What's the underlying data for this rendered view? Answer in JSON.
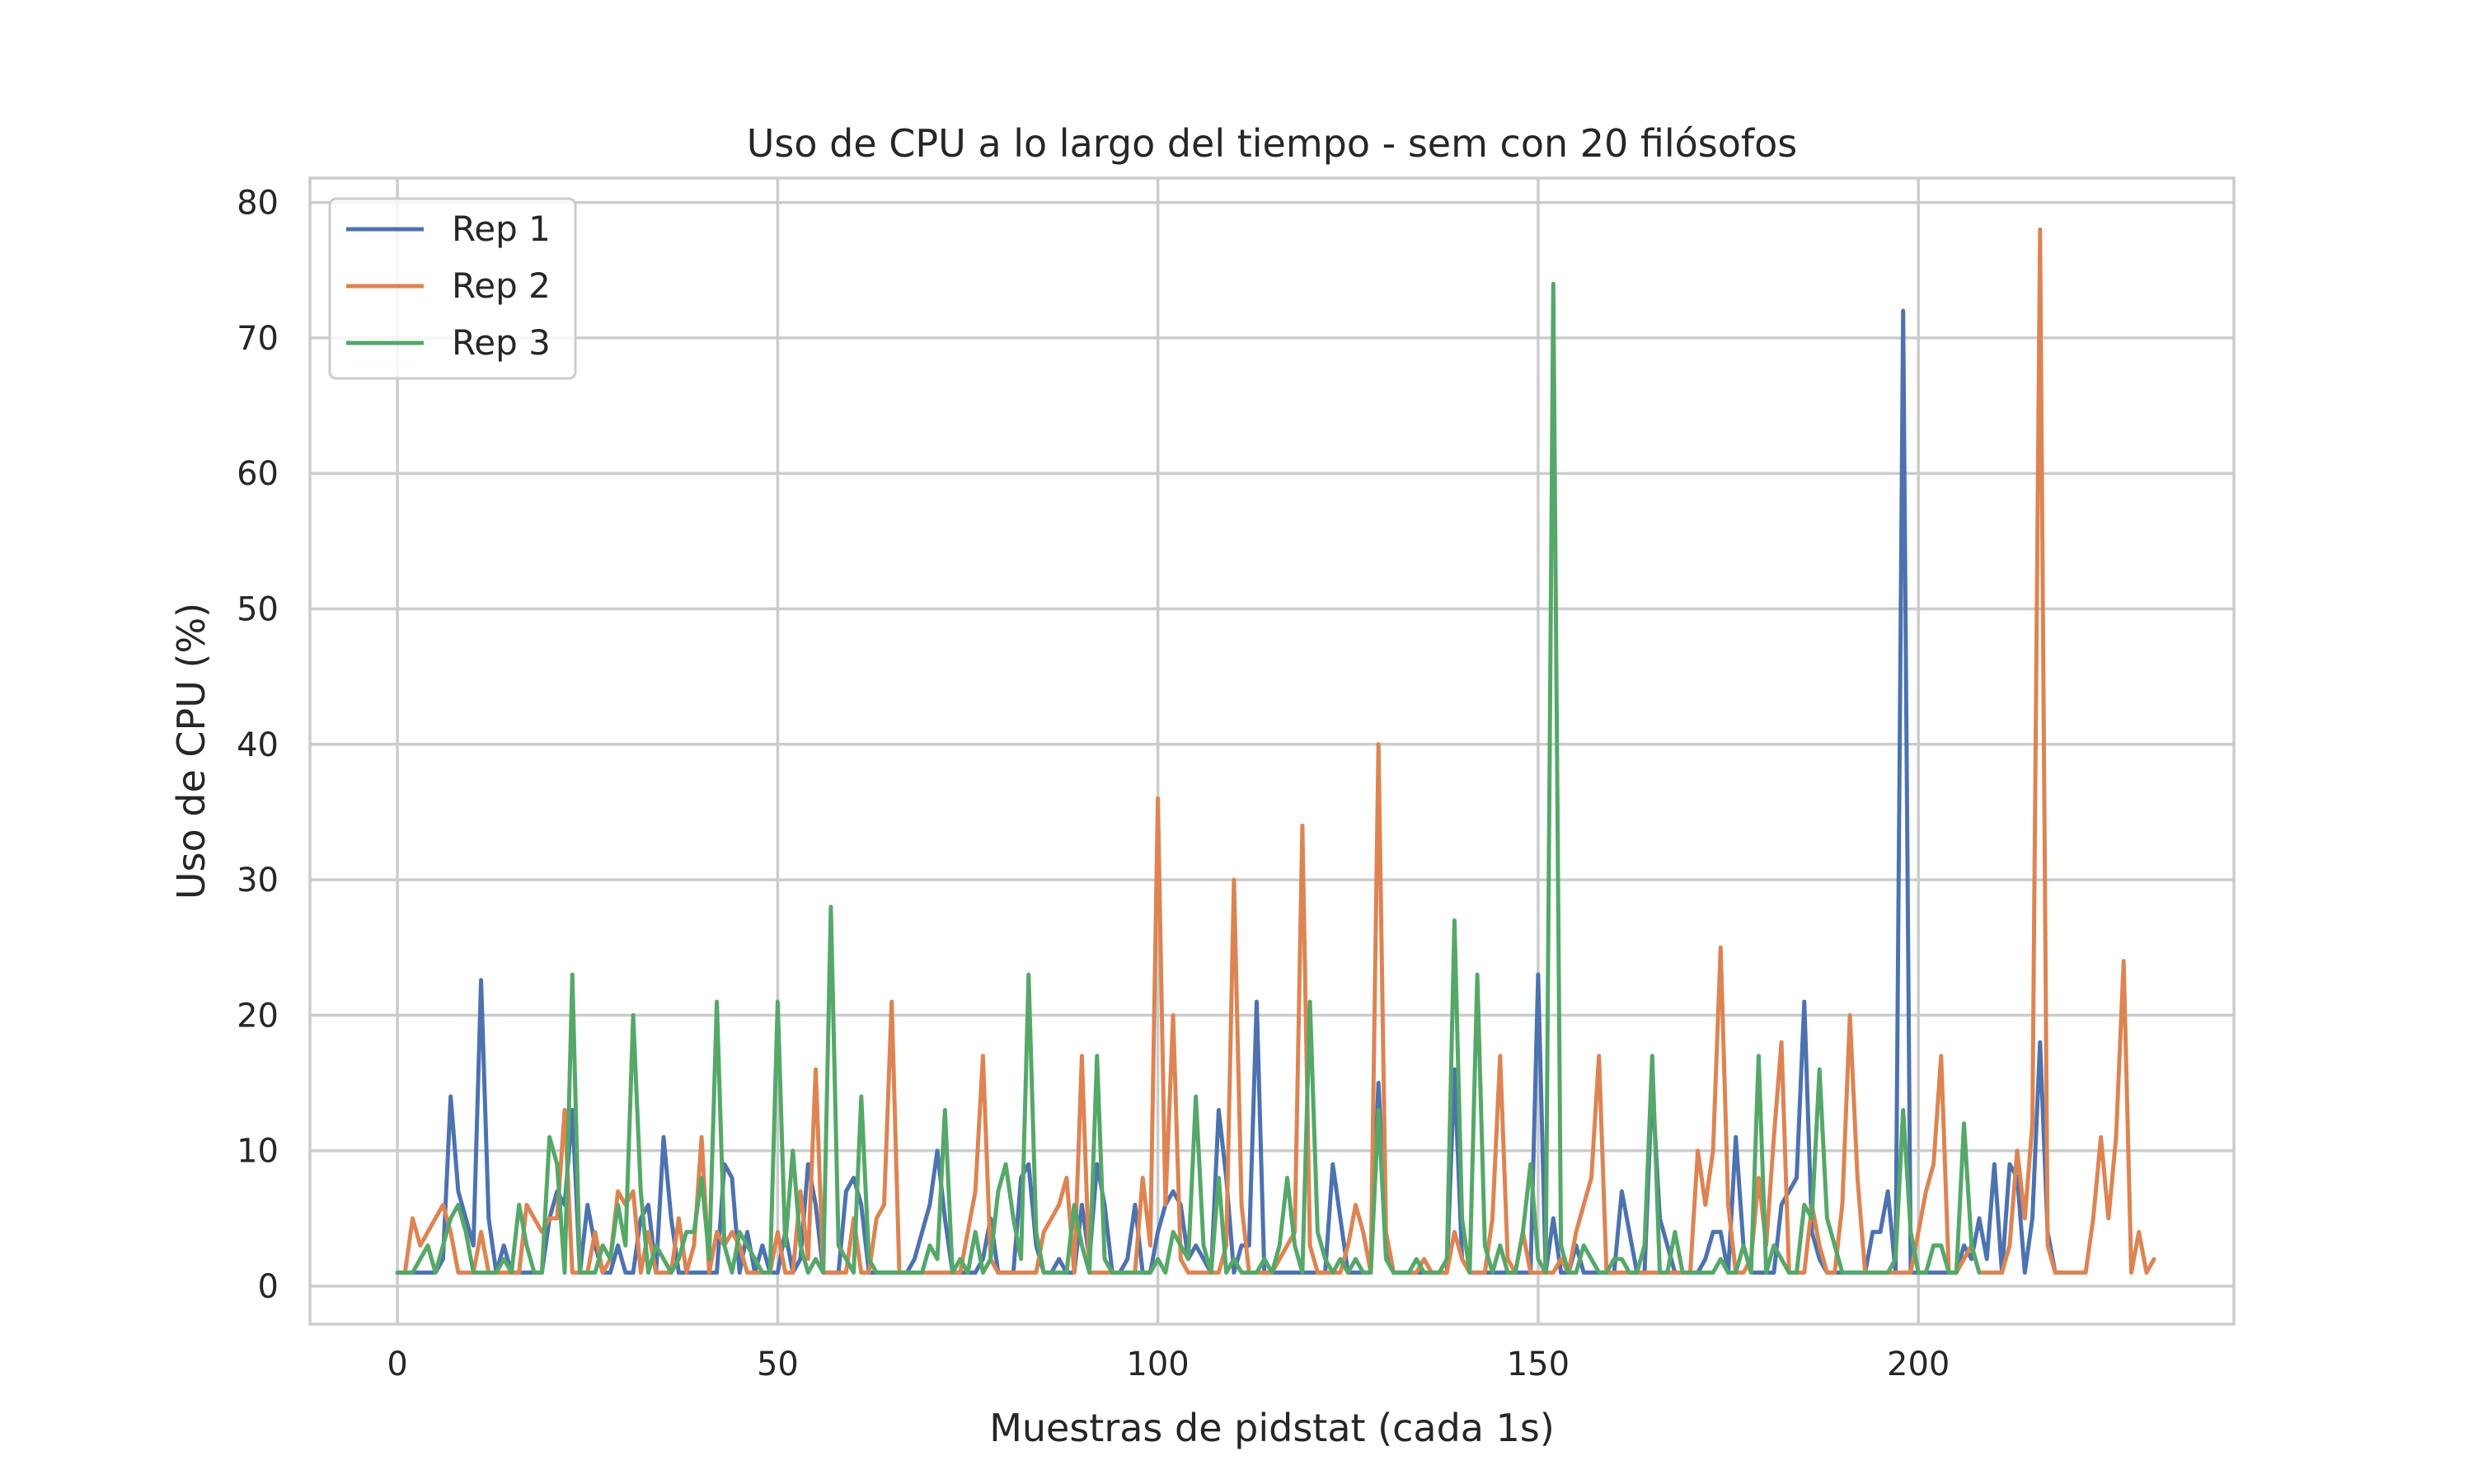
{
  "chart_data": {
    "type": "line",
    "title": "Uso de CPU a lo largo del tiempo - sem con 20 filósofos",
    "xlabel": "Muestras de pidstat (cada 1s)",
    "ylabel": "Uso de CPU (%)",
    "xlim": [
      -11.5,
      241.5
    ],
    "ylim": [
      -2.8,
      81.8
    ],
    "xticks": [
      0,
      50,
      100,
      150,
      200
    ],
    "yticks": [
      0,
      10,
      20,
      30,
      40,
      50,
      60,
      70,
      80
    ],
    "grid": true,
    "legend_position": "top-left",
    "series": [
      {
        "name": "Rep 1",
        "color": "#4c72b0",
        "values": [
          1,
          1,
          1,
          1,
          1,
          1,
          2,
          14,
          7,
          5,
          3,
          22.6,
          5,
          1,
          3,
          1,
          1,
          1,
          1,
          1,
          5,
          7,
          6,
          13,
          1,
          6,
          3,
          1,
          1,
          3,
          1,
          1,
          5,
          6,
          1,
          11,
          5,
          1,
          1,
          1,
          1,
          1,
          1,
          9,
          8,
          1,
          4,
          1,
          3,
          1,
          1,
          4,
          1,
          2,
          9,
          6,
          1,
          1,
          1,
          7,
          8,
          6,
          1,
          1,
          1,
          1,
          1,
          1,
          2,
          4,
          6,
          10,
          5,
          1,
          1,
          1,
          1,
          2,
          5,
          1,
          1,
          1,
          8,
          9,
          3,
          1,
          1,
          2,
          1,
          1,
          6,
          2,
          9,
          6,
          1,
          1,
          2,
          6,
          1,
          1,
          4,
          6,
          7,
          6,
          2,
          3,
          2,
          1,
          13,
          8,
          1,
          3,
          3,
          21,
          1,
          1,
          1,
          1,
          1,
          1,
          1,
          1,
          1,
          9,
          5,
          1,
          1,
          1,
          1,
          15,
          3,
          1,
          1,
          1,
          1,
          1,
          1,
          1,
          1,
          16,
          2,
          1,
          1,
          1,
          1,
          1,
          1,
          1,
          1,
          1,
          23,
          1,
          5,
          1,
          1,
          3,
          1,
          1,
          1,
          1,
          1,
          7,
          4,
          1,
          1,
          15,
          5,
          3,
          1,
          1,
          1,
          1,
          2,
          4,
          4,
          1,
          11,
          3,
          1,
          1,
          1,
          1,
          6,
          7,
          8,
          21,
          4,
          2,
          1,
          1,
          1,
          1,
          1,
          1,
          4,
          4,
          7,
          1,
          72,
          1,
          1,
          1,
          1,
          1,
          1,
          1,
          3,
          2,
          5,
          2,
          9,
          1,
          9,
          8,
          1,
          5,
          18,
          4,
          1,
          1
        ]
      },
      {
        "name": "Rep 2",
        "color": "#dd8452",
        "values": [
          1,
          1,
          5,
          3,
          4,
          5,
          6,
          4,
          1,
          1,
          1,
          4,
          1,
          1,
          1,
          1,
          1,
          6,
          5,
          4,
          5,
          5,
          13,
          1,
          1,
          1,
          4,
          1,
          2,
          7,
          6,
          7,
          1,
          4,
          1,
          1,
          1,
          5,
          1,
          3,
          11,
          1,
          4,
          3,
          4,
          3,
          1,
          1,
          1,
          1,
          4,
          1,
          1,
          7,
          2,
          16,
          1,
          1,
          1,
          1,
          5,
          1,
          1,
          5,
          6,
          21,
          1,
          1,
          1,
          1,
          1,
          1,
          1,
          1,
          1,
          4,
          7,
          17,
          2,
          1,
          1,
          1,
          1,
          1,
          1,
          4,
          5,
          6,
          8,
          1,
          17,
          1,
          1,
          1,
          1,
          1,
          1,
          1,
          8,
          3,
          36,
          6,
          20,
          2,
          1,
          1,
          1,
          1,
          1,
          3,
          30,
          6,
          1,
          1,
          1,
          1,
          2,
          3,
          4,
          34,
          3,
          1,
          1,
          1,
          1,
          3,
          6,
          4,
          1,
          40,
          4,
          1,
          1,
          1,
          1,
          2,
          1,
          1,
          1,
          4,
          2,
          1,
          1,
          1,
          5,
          17,
          2,
          1,
          4,
          1,
          1,
          1,
          1,
          2,
          1,
          4,
          6,
          8,
          17,
          1,
          1,
          1,
          1,
          1,
          1,
          1,
          1,
          1,
          1,
          1,
          1,
          10,
          6,
          10,
          25,
          6,
          1,
          1,
          2,
          8,
          3,
          11,
          18,
          1,
          1,
          1,
          6,
          3,
          1,
          1,
          6,
          20,
          8,
          1,
          1,
          1,
          1,
          1,
          1,
          1,
          4,
          7,
          9,
          17,
          1,
          1,
          2,
          3,
          1,
          1,
          1,
          1,
          3,
          10,
          5,
          12,
          78,
          3,
          1,
          1,
          1,
          1,
          1,
          5,
          11,
          5,
          11,
          24,
          1,
          4,
          1,
          2
        ]
      },
      {
        "name": "Rep 3",
        "color": "#55a868",
        "values": [
          1,
          1,
          1,
          2,
          3,
          1,
          3,
          5,
          6,
          4,
          1,
          1,
          1,
          1,
          2,
          1,
          6,
          3,
          1,
          1,
          11,
          9,
          1,
          23,
          1,
          1,
          1,
          3,
          2,
          6,
          3,
          20,
          7,
          1,
          3,
          2,
          1,
          2,
          4,
          4,
          8,
          2,
          21,
          3,
          1,
          4,
          3,
          2,
          1,
          1,
          21,
          3,
          10,
          3,
          1,
          2,
          1,
          28,
          3,
          2,
          1,
          14,
          2,
          1,
          1,
          1,
          1,
          1,
          1,
          1,
          3,
          2,
          13,
          1,
          2,
          1,
          4,
          1,
          2,
          7,
          9,
          5,
          2,
          23,
          4,
          1,
          1,
          1,
          1,
          6,
          3,
          1,
          17,
          2,
          1,
          1,
          1,
          1,
          1,
          1,
          2,
          1,
          4,
          3,
          2,
          14,
          3,
          1,
          8,
          1,
          2,
          1,
          1,
          1,
          2,
          1,
          3,
          8,
          3,
          1,
          21,
          4,
          2,
          1,
          2,
          1,
          2,
          1,
          1,
          13,
          2,
          1,
          1,
          1,
          2,
          1,
          1,
          1,
          2,
          27,
          5,
          1,
          23,
          3,
          1,
          3,
          1,
          1,
          4,
          9,
          2,
          1,
          74,
          3,
          1,
          1,
          3,
          2,
          1,
          1,
          2,
          2,
          1,
          1,
          3,
          17,
          1,
          1,
          4,
          1,
          1,
          1,
          1,
          1,
          2,
          1,
          1,
          3,
          1,
          17,
          1,
          3,
          2,
          1,
          1,
          6,
          5,
          16,
          5,
          3,
          1,
          1,
          1,
          1,
          1,
          1,
          1,
          2,
          13,
          4,
          1,
          1,
          3,
          3,
          1,
          1,
          12,
          3,
          1
        ]
      }
    ]
  }
}
